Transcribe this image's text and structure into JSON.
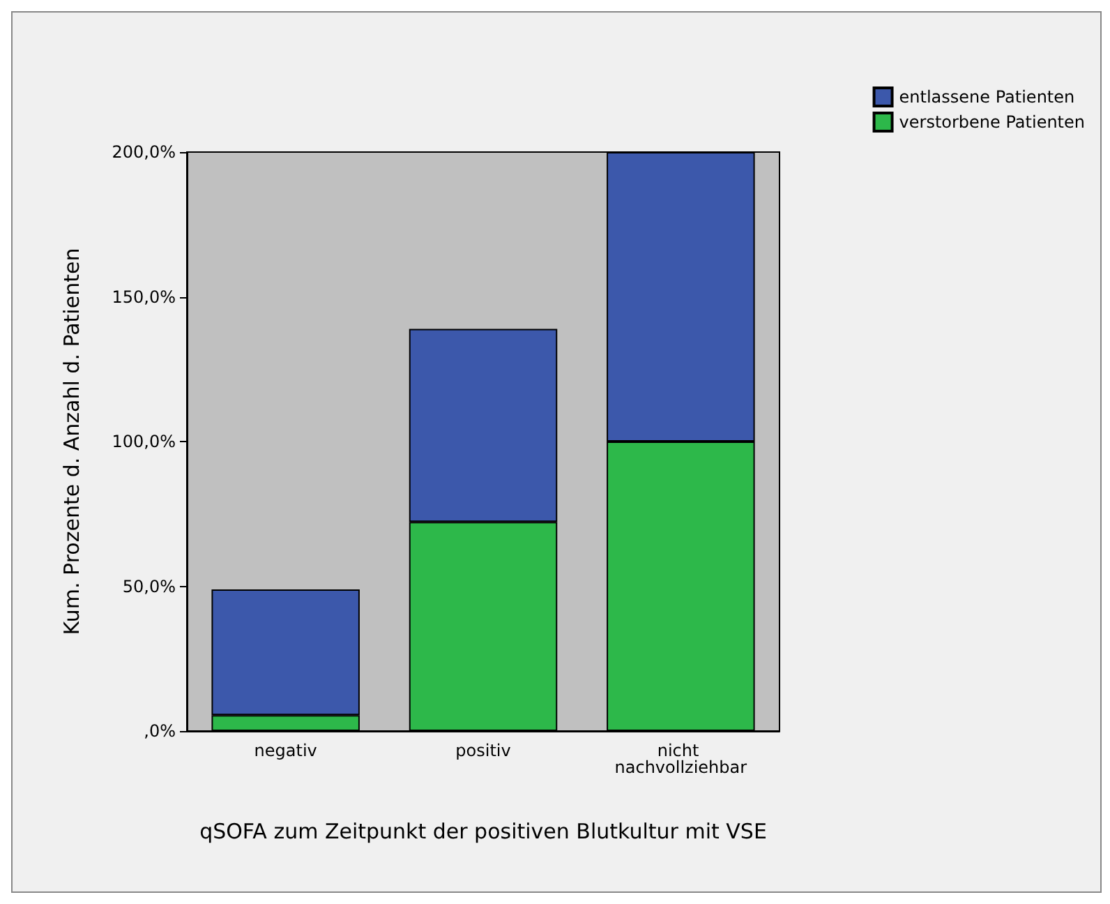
{
  "chart_data": {
    "type": "bar",
    "stacked": true,
    "xlabel": "qSOFA zum Zeitpunkt der positiven Blutkultur mit VSE",
    "ylabel": "Kum. Prozente d. Anzahl d. Patienten",
    "categories": [
      "negativ",
      "positiv",
      "nicht nachvollziehbar"
    ],
    "series": [
      {
        "name": "verstorbene Patienten",
        "color": "#2db84a",
        "values": [
          5.5,
          72.2,
          100
        ]
      },
      {
        "name": "entlassene Patienten",
        "color": "#3c58ab",
        "values": [
          43.4,
          66.7,
          100
        ]
      }
    ],
    "ylim": [
      0,
      200
    ],
    "yticks": [
      {
        "value": 0,
        "label": ",0%"
      },
      {
        "value": 50,
        "label": "50,0%"
      },
      {
        "value": 100,
        "label": "100,0%"
      },
      {
        "value": 150,
        "label": "150,0%"
      },
      {
        "value": 200,
        "label": "200,0%"
      }
    ],
    "grid": false,
    "legend": "top right"
  }
}
